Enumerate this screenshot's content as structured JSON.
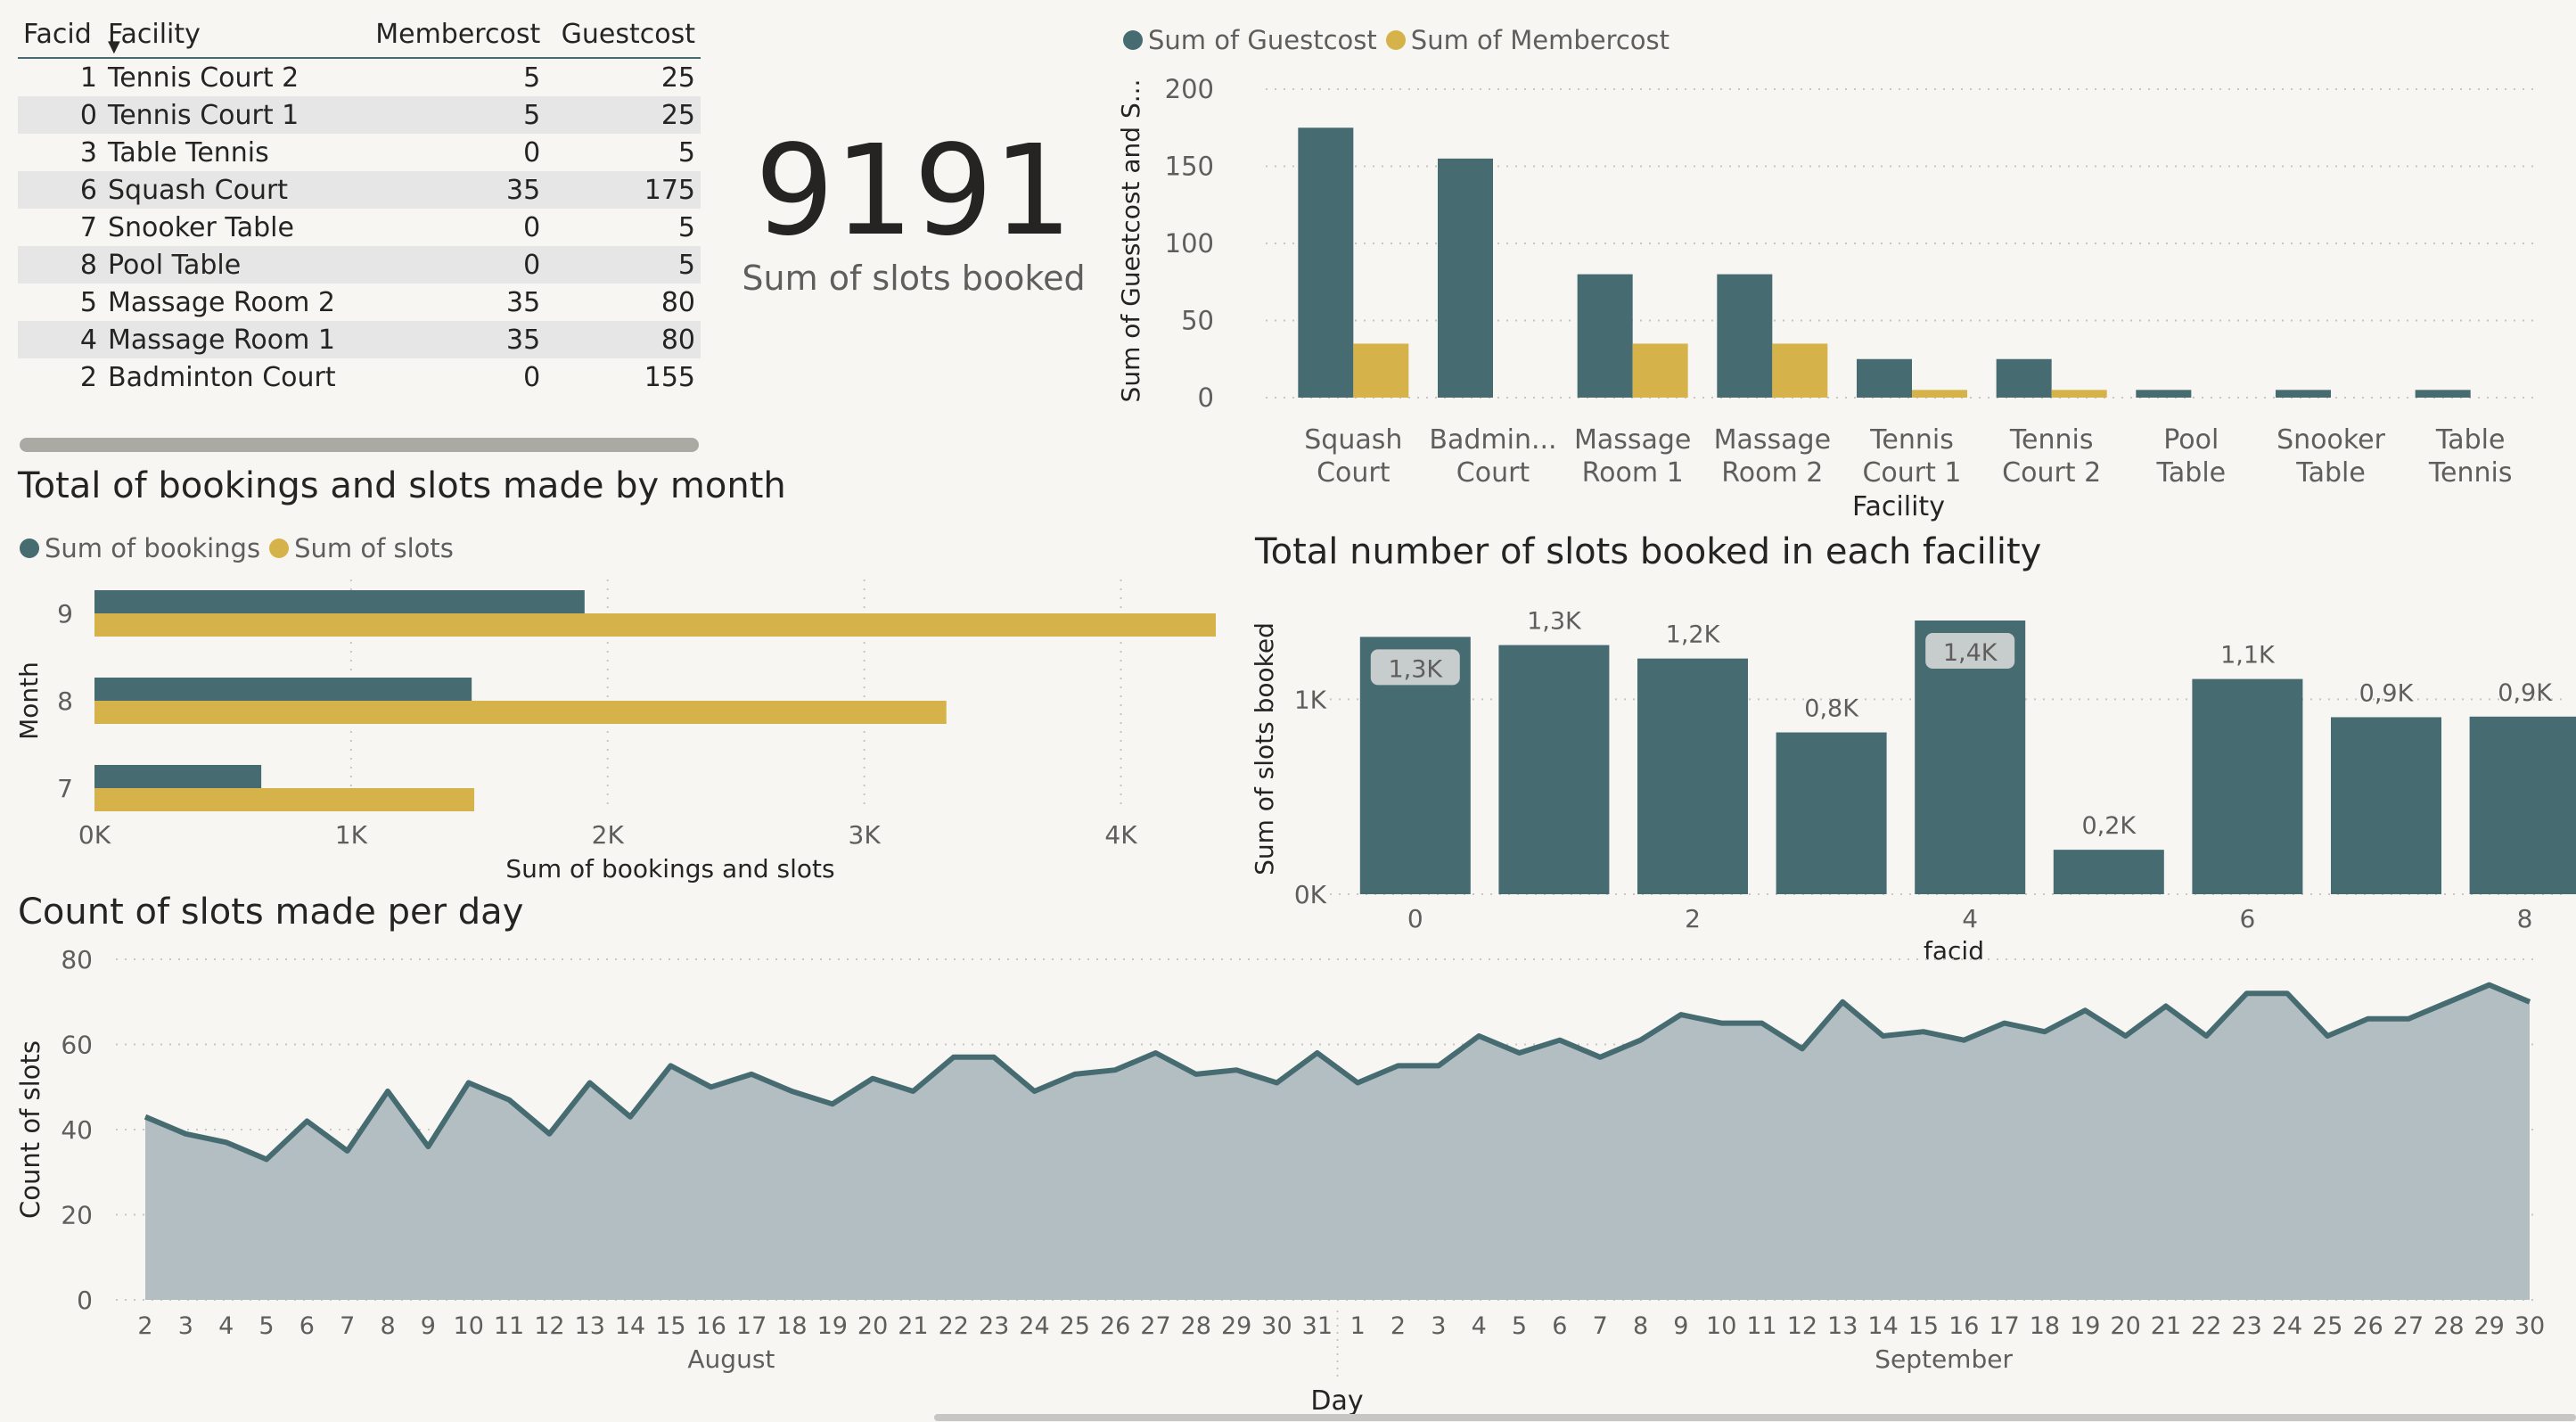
{
  "table": {
    "headers": {
      "facid": "Facid",
      "facility": "Facility",
      "membercost": "Membercost",
      "guestcost": "Guestcost"
    },
    "rows": [
      {
        "facid": "1",
        "facility": "Tennis Court 2",
        "membercost": "5",
        "guestcost": "25"
      },
      {
        "facid": "0",
        "facility": "Tennis Court 1",
        "membercost": "5",
        "guestcost": "25"
      },
      {
        "facid": "3",
        "facility": "Table Tennis",
        "membercost": "0",
        "guestcost": "5"
      },
      {
        "facid": "6",
        "facility": "Squash Court",
        "membercost": "35",
        "guestcost": "175"
      },
      {
        "facid": "7",
        "facility": "Snooker Table",
        "membercost": "0",
        "guestcost": "5"
      },
      {
        "facid": "8",
        "facility": "Pool Table",
        "membercost": "0",
        "guestcost": "5"
      },
      {
        "facid": "5",
        "facility": "Massage Room 2",
        "membercost": "35",
        "guestcost": "80"
      },
      {
        "facid": "4",
        "facility": "Massage Room 1",
        "membercost": "35",
        "guestcost": "80"
      },
      {
        "facid": "2",
        "facility": "Badminton Court",
        "membercost": "0",
        "guestcost": "155"
      }
    ]
  },
  "kpi": {
    "value": "9191",
    "label": "Sum of slots booked"
  },
  "titles": {
    "month_chart": "Total of bookings and slots made by month",
    "facility_slots_chart": "Total number of slots booked in each facility",
    "daily_chart": "Count of slots made per day"
  },
  "colors": {
    "dark": "#466b71",
    "gold": "#d6b34a",
    "area": "#b2bec1",
    "grid": "#c8c6c4",
    "text": "#605e5c"
  },
  "chart_data": [
    {
      "id": "cost",
      "type": "bar",
      "categories": [
        "Squash Court",
        "Badmin... Court",
        "Massage Room 1",
        "Massage Room 2",
        "Tennis Court 1",
        "Tennis Court 2",
        "Pool Table",
        "Snooker Table",
        "Table Tennis"
      ],
      "series": [
        {
          "name": "Sum of Guestcost",
          "color": "#466b71",
          "values": [
            175,
            155,
            80,
            80,
            25,
            25,
            5,
            5,
            5
          ]
        },
        {
          "name": "Sum of Membercost",
          "color": "#d6b34a",
          "values": [
            35,
            0,
            35,
            35,
            5,
            5,
            0,
            0,
            0
          ]
        }
      ],
      "xlabel": "Facility",
      "ylabel": "Sum of Guestcost and S...",
      "yticks": [
        0,
        50,
        100,
        150,
        200
      ],
      "ylim": [
        0,
        200
      ],
      "legend": "top-left",
      "grid": true
    },
    {
      "id": "month",
      "type": "bar",
      "orientation": "horizontal",
      "categories": [
        "9",
        "8",
        "7"
      ],
      "series": [
        {
          "name": "Sum of bookings",
          "color": "#466b71",
          "values": [
            1910,
            1470,
            650
          ]
        },
        {
          "name": "Sum of slots",
          "color": "#d6b34a",
          "values": [
            4370,
            3320,
            1480
          ]
        }
      ],
      "xlabel": "Sum of bookings and slots",
      "ylabel": "Month",
      "xticks": [
        "0K",
        "1K",
        "2K",
        "3K",
        "4K"
      ],
      "xlim": [
        0,
        4370
      ],
      "legend": "top-left",
      "grid": true
    },
    {
      "id": "facility_slots",
      "type": "bar",
      "categories": [
        "0",
        "1",
        "2",
        "3",
        "4",
        "5",
        "6",
        "7",
        "8"
      ],
      "tick_labels": [
        "0",
        "",
        "2",
        "",
        "4",
        "",
        "6",
        "",
        "8"
      ],
      "values": [
        1320,
        1278,
        1209,
        830,
        1404,
        228,
        1104,
        908,
        911
      ],
      "data_labels": [
        "1,3K",
        "1,3K",
        "1,2K",
        "0,8K",
        "1,4K",
        "0,2K",
        "1,1K",
        "0,9K",
        "0,9K"
      ],
      "xlabel": "facid",
      "ylabel": "Sum of slots booked",
      "yticks": [
        "0K",
        "1K"
      ],
      "ylim": [
        0,
        1404
      ],
      "grid": true
    },
    {
      "id": "daily",
      "type": "area",
      "x_labels": [
        "2",
        "3",
        "4",
        "5",
        "6",
        "7",
        "8",
        "9",
        "10",
        "11",
        "12",
        "13",
        "14",
        "15",
        "16",
        "17",
        "18",
        "19",
        "20",
        "21",
        "22",
        "23",
        "24",
        "25",
        "26",
        "27",
        "28",
        "29",
        "30",
        "31",
        "1",
        "2",
        "3",
        "4",
        "5",
        "6",
        "7",
        "8",
        "9",
        "10",
        "11",
        "12",
        "13",
        "14",
        "15",
        "16",
        "17",
        "18",
        "19",
        "20",
        "21",
        "22",
        "23",
        "24",
        "25",
        "26",
        "27",
        "28",
        "29",
        "30"
      ],
      "values": [
        43,
        39,
        37,
        33,
        42,
        35,
        49,
        36,
        51,
        47,
        39,
        51,
        43,
        55,
        50,
        53,
        49,
        46,
        52,
        49,
        57,
        57,
        49,
        53,
        54,
        58,
        53,
        54,
        51,
        58,
        51,
        55,
        55,
        62,
        58,
        61,
        57,
        61,
        67,
        65,
        65,
        59,
        70,
        62,
        63,
        61,
        65,
        63,
        68,
        62,
        69,
        62,
        72,
        72,
        62,
        66,
        66,
        70,
        74,
        70
      ],
      "groups": [
        {
          "label": "August",
          "start": 0,
          "end": 29
        },
        {
          "label": "September",
          "start": 30,
          "end": 59
        }
      ],
      "xlabel": "Day",
      "ylabel": "Count of slots",
      "yticks": [
        0,
        20,
        40,
        60,
        80
      ],
      "ylim": [
        0,
        80
      ],
      "grid": true
    }
  ]
}
